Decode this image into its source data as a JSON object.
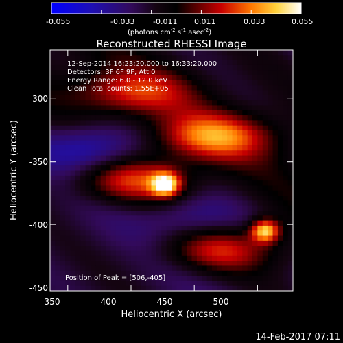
{
  "colorbar": {
    "ticks": [
      "-0.055",
      "-0.033",
      "-0.011",
      "0.011",
      "0.033",
      "0.055"
    ],
    "unit_main": "(photons cm",
    "unit_sup1": "-2",
    "unit_s": " s",
    "unit_sup2": "-1",
    "unit_asec": " asec",
    "unit_sup3": "-2",
    "unit_close": ")",
    "range": [
      -0.055,
      0.055
    ]
  },
  "chart_data": {
    "type": "heatmap",
    "title": "Reconstructed RHESSI Image",
    "xlabel": "Heliocentric X (arcsec)",
    "ylabel": "Heliocentric Y (arcsec)",
    "xlim": [
      336,
      528
    ],
    "ylim": [
      -453,
      -261
    ],
    "xticks": [
      350,
      400,
      450,
      500
    ],
    "yticks": [
      -300,
      -350,
      -400,
      -450
    ],
    "info_lines": [
      "12-Sep-2014 16:23:20.000 to 16:33:20.000",
      "Detectors: 3F 6F 9F, Att 0",
      "Energy Range: 6.0 - 12.0 keV",
      "Clean     Total counts: 1.55E+05"
    ],
    "peak_label": "Position of Peak = [506,-405]",
    "peak_position": [
      506,
      -405
    ],
    "footer_date": "14-Feb-2017 07:11",
    "sources": [
      {
        "x": 427,
        "y": -368,
        "amplitude": 0.055
      },
      {
        "x": 506,
        "y": -405,
        "amplitude": 0.055
      }
    ],
    "ridges": [
      {
        "x": 400,
        "y": -365,
        "level": 0.035
      },
      {
        "x": 465,
        "y": -330,
        "level": 0.04
      },
      {
        "x": 400,
        "y": -295,
        "level": 0.03
      },
      {
        "x": 470,
        "y": -420,
        "level": 0.033
      }
    ],
    "troughs": [
      {
        "x": 370,
        "y": -340,
        "level": -0.03
      },
      {
        "x": 450,
        "y": -395,
        "level": -0.02
      }
    ]
  }
}
